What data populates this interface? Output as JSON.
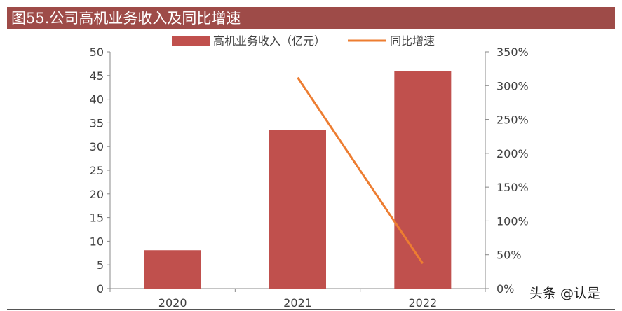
{
  "title": "图55.公司高机业务收入及同比增速",
  "watermark": "头条 @认是",
  "colors": {
    "title_bg": "#9e4b48",
    "bar": "#c0504d",
    "line": "#ed7d31",
    "axis": "#888888",
    "text": "#404040"
  },
  "chart_data": {
    "type": "bar",
    "categories": [
      "2020",
      "2021",
      "2022"
    ],
    "series": [
      {
        "name": "高机业务收入（亿元）",
        "type": "bar",
        "axis": "left",
        "values": [
          8.1,
          33.5,
          45.9
        ]
      },
      {
        "name": "同比增速",
        "type": "line",
        "axis": "right",
        "values": [
          null,
          3.12,
          0.37
        ]
      }
    ],
    "ylim_left": [
      0,
      50
    ],
    "yticks_left": [
      "0",
      "5",
      "10",
      "15",
      "20",
      "25",
      "30",
      "35",
      "40",
      "45",
      "50"
    ],
    "ylim_right": [
      0,
      3.5
    ],
    "yticks_right": [
      "0%",
      "50%",
      "100%",
      "150%",
      "200%",
      "250%",
      "300%",
      "350%"
    ],
    "legend_position": "top-center",
    "grid": false
  }
}
